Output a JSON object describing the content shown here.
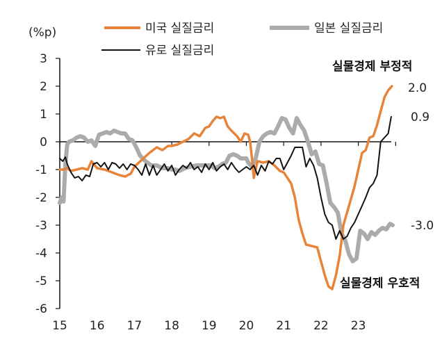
{
  "chart_data": {
    "type": "line",
    "ylabel": "(%p)",
    "ylim": [
      -6,
      3
    ],
    "yticks": [
      "3",
      "2",
      "1",
      "0",
      "-1",
      "-2",
      "-3",
      "-4",
      "-5",
      "-6"
    ],
    "xlim": [
      2015,
      2023.92
    ],
    "xticks": [
      "15",
      "16",
      "17",
      "18",
      "19",
      "20",
      "21",
      "22",
      "23"
    ],
    "legend": [
      {
        "label": "미국 실질금리",
        "series": 0
      },
      {
        "label": "일본 실질금리",
        "series": 1
      },
      {
        "label": "유로 실질금리",
        "series": 2
      }
    ],
    "annotations": {
      "top": "실물경제 부정적",
      "bottom": "실물경제 우호적"
    },
    "end_labels": [
      "2.0",
      "0.9",
      "-3.0"
    ],
    "series": [
      {
        "name": "미국 실질금리",
        "color": "#E8843A",
        "x": [
          2015.0,
          2015.1,
          2015.2,
          2015.3,
          2015.45,
          2015.6,
          2015.75,
          2015.85,
          2016.0,
          2016.2,
          2016.4,
          2016.6,
          2016.75,
          2016.9,
          2017.0,
          2017.2,
          2017.4,
          2017.6,
          2017.75,
          2017.9,
          2018.0,
          2018.15,
          2018.3,
          2018.45,
          2018.6,
          2018.75,
          2018.9,
          2019.0,
          2019.1,
          2019.2,
          2019.3,
          2019.4,
          2019.5,
          2019.6,
          2019.75,
          2019.85,
          2019.95,
          2020.05,
          2020.1,
          2020.15,
          2020.2,
          2020.3,
          2020.45,
          2020.6,
          2020.75,
          2020.9,
          2021.0,
          2021.1,
          2021.2,
          2021.3,
          2021.4,
          2021.5,
          2021.6,
          2021.75,
          2021.9,
          2022.0,
          2022.1,
          2022.2,
          2022.3,
          2022.4,
          2022.5,
          2022.6,
          2022.75,
          2022.9,
          2023.0,
          2023.1,
          2023.2,
          2023.3,
          2023.4,
          2023.5,
          2023.6,
          2023.7,
          2023.8,
          2023.9
        ],
        "y": [
          -1.0,
          -1.0,
          -0.95,
          -1.05,
          -1.0,
          -0.95,
          -1.0,
          -0.7,
          -0.95,
          -1.0,
          -1.1,
          -1.2,
          -1.25,
          -1.15,
          -0.9,
          -0.65,
          -0.4,
          -0.2,
          -0.3,
          -0.15,
          -0.15,
          -0.1,
          0.0,
          0.1,
          0.3,
          0.2,
          0.5,
          0.55,
          0.75,
          0.9,
          0.85,
          0.9,
          0.55,
          0.4,
          0.2,
          0.0,
          0.3,
          0.25,
          0.0,
          -0.6,
          -1.3,
          -0.7,
          -0.75,
          -0.7,
          -0.85,
          -1.05,
          -1.1,
          -1.3,
          -1.5,
          -2.0,
          -2.8,
          -3.3,
          -3.7,
          -3.75,
          -3.8,
          -4.3,
          -4.8,
          -5.2,
          -5.3,
          -4.8,
          -4.1,
          -3.0,
          -2.3,
          -1.6,
          -1.0,
          -0.4,
          -0.3,
          0.15,
          0.2,
          0.6,
          1.1,
          1.6,
          1.85,
          2.0
        ]
      },
      {
        "name": "일본 실질금리",
        "color": "#ABABAB",
        "x": [
          2015.0,
          2015.05,
          2015.1,
          2015.15,
          2015.2,
          2015.25,
          2015.35,
          2015.45,
          2015.55,
          2015.65,
          2015.75,
          2015.85,
          2015.95,
          2016.05,
          2016.15,
          2016.25,
          2016.35,
          2016.45,
          2016.55,
          2016.65,
          2016.75,
          2016.85,
          2016.95,
          2017.05,
          2017.15,
          2017.3,
          2017.45,
          2017.6,
          2017.75,
          2017.9,
          2018.0,
          2018.1,
          2018.2,
          2018.35,
          2018.5,
          2018.65,
          2018.8,
          2018.95,
          2019.05,
          2019.15,
          2019.25,
          2019.35,
          2019.45,
          2019.55,
          2019.65,
          2019.75,
          2019.85,
          2019.95,
          2020.0,
          2020.05,
          2020.15,
          2020.25,
          2020.35,
          2020.45,
          2020.55,
          2020.65,
          2020.75,
          2020.85,
          2020.95,
          2021.05,
          2021.15,
          2021.25,
          2021.35,
          2021.45,
          2021.55,
          2021.65,
          2021.75,
          2021.85,
          2021.95,
          2022.05,
          2022.15,
          2022.25,
          2022.35,
          2022.45,
          2022.55,
          2022.65,
          2022.75,
          2022.85,
          2022.95,
          2023.05,
          2023.15,
          2023.25,
          2023.35,
          2023.45,
          2023.55,
          2023.65,
          2023.75,
          2023.85,
          2023.92
        ],
        "y": [
          -2.2,
          -2.0,
          -2.15,
          -0.8,
          -0.1,
          0.0,
          0.05,
          0.15,
          0.2,
          0.15,
          0.0,
          0.05,
          -0.15,
          0.25,
          0.3,
          0.35,
          0.3,
          0.4,
          0.35,
          0.3,
          0.3,
          0.1,
          0.05,
          -0.2,
          -0.5,
          -0.7,
          -0.85,
          -0.85,
          -0.95,
          -0.95,
          -1.0,
          -1.0,
          -1.05,
          -0.95,
          -0.9,
          -0.85,
          -0.85,
          -0.85,
          -0.85,
          -0.95,
          -0.9,
          -0.8,
          -0.75,
          -0.5,
          -0.45,
          -0.5,
          -0.6,
          -0.6,
          -0.6,
          -0.75,
          -0.9,
          -0.6,
          0.0,
          0.2,
          0.3,
          0.35,
          0.3,
          0.55,
          0.85,
          0.8,
          0.5,
          0.3,
          0.85,
          0.6,
          0.4,
          0.0,
          -0.45,
          -0.35,
          -0.8,
          -0.85,
          -1.5,
          -2.2,
          -2.35,
          -2.55,
          -3.3,
          -3.55,
          -4.05,
          -4.3,
          -4.2,
          -3.2,
          -3.3,
          -3.5,
          -3.25,
          -3.35,
          -3.2,
          -3.1,
          -3.15,
          -2.95,
          -3.0
        ]
      },
      {
        "name": "유로 실질금리",
        "color": "#111111",
        "x": [
          2015.0,
          2015.08,
          2015.15,
          2015.2,
          2015.3,
          2015.4,
          2015.5,
          2015.6,
          2015.7,
          2015.8,
          2015.9,
          2016.0,
          2016.1,
          2016.2,
          2016.3,
          2016.4,
          2016.5,
          2016.6,
          2016.7,
          2016.8,
          2016.9,
          2017.0,
          2017.1,
          2017.2,
          2017.3,
          2017.4,
          2017.5,
          2017.6,
          2017.7,
          2017.8,
          2017.9,
          2018.0,
          2018.1,
          2018.2,
          2018.3,
          2018.4,
          2018.5,
          2018.6,
          2018.7,
          2018.8,
          2018.9,
          2019.0,
          2019.1,
          2019.2,
          2019.3,
          2019.4,
          2019.5,
          2019.6,
          2019.7,
          2019.8,
          2019.9,
          2020.0,
          2020.1,
          2020.2,
          2020.3,
          2020.4,
          2020.5,
          2020.6,
          2020.7,
          2020.8,
          2020.9,
          2021.0,
          2021.1,
          2021.2,
          2021.3,
          2021.4,
          2021.5,
          2021.6,
          2021.7,
          2021.8,
          2021.9,
          2022.0,
          2022.1,
          2022.2,
          2022.3,
          2022.4,
          2022.5,
          2022.6,
          2022.7,
          2022.8,
          2022.9,
          2023.0,
          2023.1,
          2023.2,
          2023.3,
          2023.4,
          2023.5,
          2023.6,
          2023.7,
          2023.8,
          2023.88
        ],
        "y": [
          -0.6,
          -0.7,
          -0.55,
          -0.8,
          -1.1,
          -1.3,
          -1.25,
          -1.4,
          -1.2,
          -1.25,
          -0.8,
          -0.75,
          -0.9,
          -0.75,
          -1.0,
          -0.75,
          -0.8,
          -0.95,
          -0.8,
          -1.0,
          -0.8,
          -0.85,
          -1.0,
          -1.2,
          -0.8,
          -1.2,
          -0.85,
          -1.2,
          -1.0,
          -0.8,
          -1.05,
          -0.85,
          -1.2,
          -1.0,
          -0.85,
          -0.95,
          -0.75,
          -1.0,
          -0.9,
          -1.1,
          -0.8,
          -1.0,
          -0.75,
          -1.05,
          -0.9,
          -0.8,
          -1.0,
          -0.75,
          -0.95,
          -1.1,
          -1.0,
          -0.9,
          -1.0,
          -0.85,
          -1.2,
          -0.85,
          -1.05,
          -0.7,
          -0.8,
          -0.6,
          -0.6,
          -1.0,
          -0.75,
          -0.5,
          -0.2,
          -0.2,
          -0.2,
          -0.9,
          -0.6,
          -0.85,
          -1.3,
          -2.0,
          -2.6,
          -2.9,
          -3.0,
          -3.5,
          -3.2,
          -3.5,
          -3.4,
          -3.1,
          -2.9,
          -2.6,
          -2.3,
          -2.0,
          -1.65,
          -1.5,
          -1.2,
          0.0,
          0.15,
          0.3,
          0.9
        ]
      }
    ]
  }
}
